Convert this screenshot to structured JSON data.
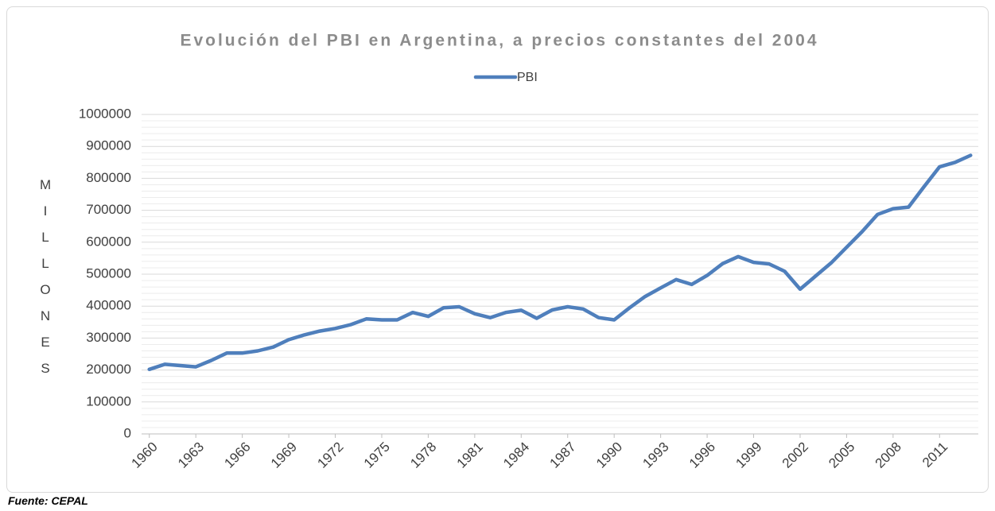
{
  "chart_data": {
    "type": "line",
    "title": "Evolución del PBI en Argentina, a precios constantes del 2004",
    "y_label": "MILLONES",
    "source": "Fuente: CEPAL",
    "categories": [
      "1960",
      null,
      null,
      "1963",
      null,
      null,
      "1966",
      null,
      null,
      "1969",
      null,
      null,
      "1972",
      null,
      null,
      "1975",
      null,
      null,
      "1978",
      null,
      null,
      "1981",
      null,
      null,
      "1984",
      null,
      null,
      "1987",
      null,
      null,
      "1990",
      null,
      null,
      "1993",
      null,
      null,
      "1996",
      null,
      null,
      "1999",
      null,
      null,
      "2002",
      null,
      null,
      "2005",
      null,
      null,
      "2008",
      null,
      null,
      "2011",
      null,
      null
    ],
    "series": [
      {
        "name": "PBI",
        "color": "#4f7fbc",
        "values": [
          202000,
          218000,
          214000,
          210000,
          230000,
          253000,
          253000,
          260000,
          272000,
          295000,
          310000,
          322000,
          330000,
          342000,
          360000,
          357000,
          357000,
          380000,
          368000,
          395000,
          398000,
          376000,
          364000,
          380000,
          387000,
          362000,
          388000,
          398000,
          391000,
          364000,
          357000,
          395000,
          430000,
          457000,
          483000,
          468000,
          496000,
          533000,
          555000,
          537000,
          532000,
          509000,
          453000,
          494000,
          535000,
          584000,
          633000,
          687000,
          705000,
          710000,
          774000,
          836000,
          850000,
          872000
        ]
      }
    ],
    "ylim": [
      0,
      1000000
    ],
    "yticks": [
      0,
      100000,
      200000,
      300000,
      400000,
      500000,
      600000,
      700000,
      800000,
      900000,
      1000000
    ],
    "grid": true,
    "legend": "top"
  }
}
